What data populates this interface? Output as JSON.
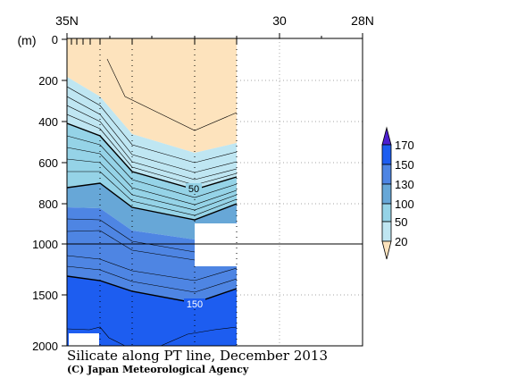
{
  "chart_data": {
    "type": "contour-section",
    "title": "Silicate along PT line, December 2013",
    "credit": "(C) Japan Meteorological Agency",
    "y_unit_label": "(m)",
    "x_tick_labels": [
      "35N",
      "30",
      "28N"
    ],
    "x_axis_latitudes": [
      35,
      30,
      28
    ],
    "y_ticks_upper": [
      0,
      200,
      400,
      600,
      800,
      1000
    ],
    "y_ticks_lower": [
      1500,
      2000
    ],
    "y_break_depth": 1000,
    "ylim": [
      0,
      2000
    ],
    "colorbar": {
      "labels": [
        "170",
        "150",
        "130",
        "100",
        "50",
        "20"
      ],
      "bands": [
        {
          "range": "<20",
          "color": "#fde3bd"
        },
        {
          "range": "20-50",
          "color": "#bfe6f2"
        },
        {
          "range": "50-100",
          "color": "#95d3e7"
        },
        {
          "range": "100-130",
          "color": "#67a7d7"
        },
        {
          "range": "130-150",
          "color": "#4e85e3"
        },
        {
          "range": "150-170",
          "color": "#1d5df0"
        },
        {
          "range": ">170",
          "color": "#4d1fd0"
        }
      ]
    },
    "contour_labels": [
      "50",
      "150"
    ],
    "highlighted_contours": [
      20,
      50,
      150
    ]
  }
}
